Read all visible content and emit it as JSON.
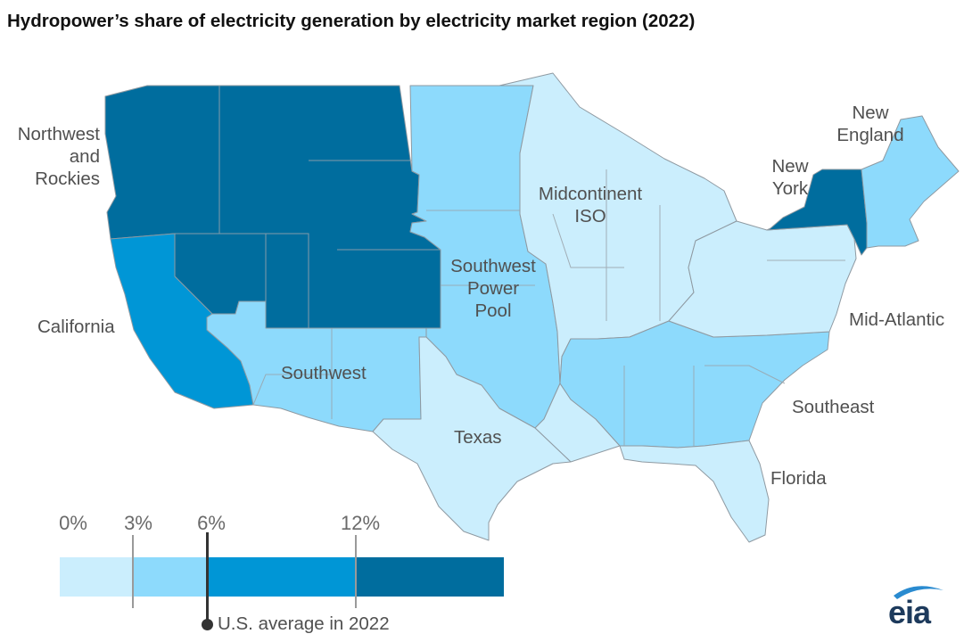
{
  "title": "Hydropower’s share of electricity generation by electricity market region (2022)",
  "colors": {
    "lightest": "#cbeefd",
    "light": "#8ddafc",
    "medium": "#0096d6",
    "dark": "#006d9e",
    "border": "#8f9aa2",
    "label": "#505050"
  },
  "regions": [
    {
      "id": "northwest",
      "label_lines": [
        "Northwest",
        "and",
        "Rockies"
      ],
      "category": "12% or more"
    },
    {
      "id": "california",
      "label_lines": [
        "California"
      ],
      "category": "6% to 12%"
    },
    {
      "id": "southwest",
      "label_lines": [
        "Southwest"
      ],
      "category": "3% to 6%"
    },
    {
      "id": "texas",
      "label_lines": [
        "Texas"
      ],
      "category": "0% to 3%"
    },
    {
      "id": "spp",
      "label_lines": [
        "Southwest",
        "Power",
        "Pool"
      ],
      "category": "3% to 6%"
    },
    {
      "id": "miso",
      "label_lines": [
        "Midcontinent",
        "ISO"
      ],
      "category": "0% to 3%"
    },
    {
      "id": "southeast",
      "label_lines": [
        "Southeast"
      ],
      "category": "3% to 6%"
    },
    {
      "id": "florida",
      "label_lines": [
        "Florida"
      ],
      "category": "0% to 3%"
    },
    {
      "id": "midatlantic",
      "label_lines": [
        "Mid-Atlantic"
      ],
      "category": "0% to 3%"
    },
    {
      "id": "newyork",
      "label_lines": [
        "New",
        "York"
      ],
      "category": "12% or more"
    },
    {
      "id": "newengland",
      "label_lines": [
        "New",
        "England"
      ],
      "category": "3% to 6%"
    }
  ],
  "legend": {
    "ticks": [
      "0%",
      "3%",
      "6%",
      "12%"
    ],
    "bins": [
      {
        "from": 0,
        "to": 3,
        "color": "#cbeefd"
      },
      {
        "from": 3,
        "to": 6,
        "color": "#8ddafc"
      },
      {
        "from": 6,
        "to": 12,
        "color": "#0096d6"
      },
      {
        "from": 12,
        "to": null,
        "color": "#006d9e"
      }
    ],
    "us_average_label": "U.S. average in 2022",
    "us_average_value": 6
  },
  "logo_text": "eia"
}
